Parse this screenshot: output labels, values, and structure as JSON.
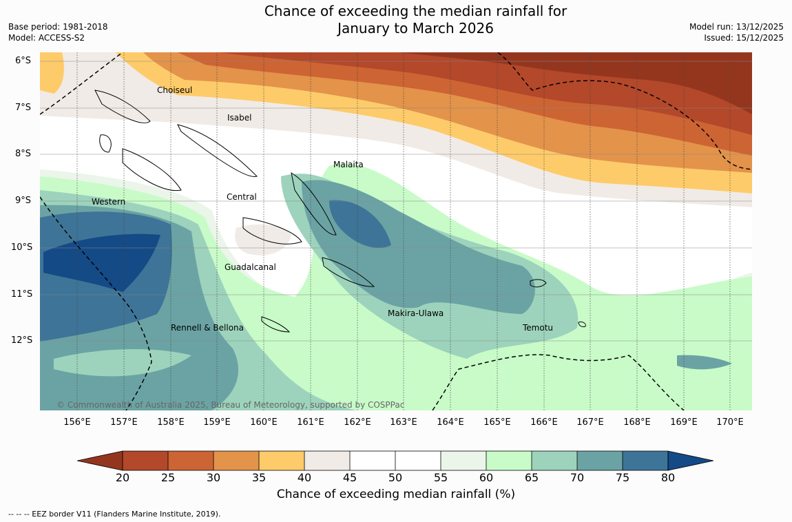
{
  "title": {
    "line1": "Chance of exceeding the median rainfall for",
    "line2": "January to March 2026"
  },
  "meta_left": {
    "base_period": "Base period: 1981-2018",
    "model": "Model: ACCESS-S2"
  },
  "meta_right": {
    "model_run": "Model run: 13/12/2025",
    "issued": "Issued: 15/12/2025"
  },
  "map": {
    "lat_labels": [
      "6°S",
      "7°S",
      "8°S",
      "9°S",
      "10°S",
      "11°S",
      "12°S"
    ],
    "lon_labels": [
      "156°E",
      "157°E",
      "158°E",
      "159°E",
      "160°E",
      "161°E",
      "162°E",
      "163°E",
      "164°E",
      "165°E",
      "166°E",
      "167°E",
      "168°E",
      "169°E",
      "170°E"
    ],
    "regions": [
      "Choiseul",
      "Isabel",
      "Malaita",
      "Central",
      "Western",
      "Guadalcanal",
      "Makira-Ulawa",
      "Rennell & Bellona",
      "Temotu"
    ],
    "copyright": "© Commonwealth of Australia 2025, Bureau of Meteorology, supported by COSPPac"
  },
  "colorbar": {
    "ticks": [
      "20",
      "25",
      "30",
      "35",
      "40",
      "45",
      "50",
      "55",
      "60",
      "65",
      "70",
      "75",
      "80"
    ],
    "colors": [
      "#94361e",
      "#b3482a",
      "#cd6433",
      "#e3934a",
      "#fecb6a",
      "#f0ebe6",
      "#ffffff",
      "#ffffff",
      "#ebf5ea",
      "#c9fbc9",
      "#9dd3bc",
      "#6ba3a4",
      "#3e7497",
      "#144a85"
    ],
    "label": "Chance of exceeding median rainfall (%)"
  },
  "footnote": "--  --  -- EEZ border V11 (Flanders Marine Institute, 2019)."
}
